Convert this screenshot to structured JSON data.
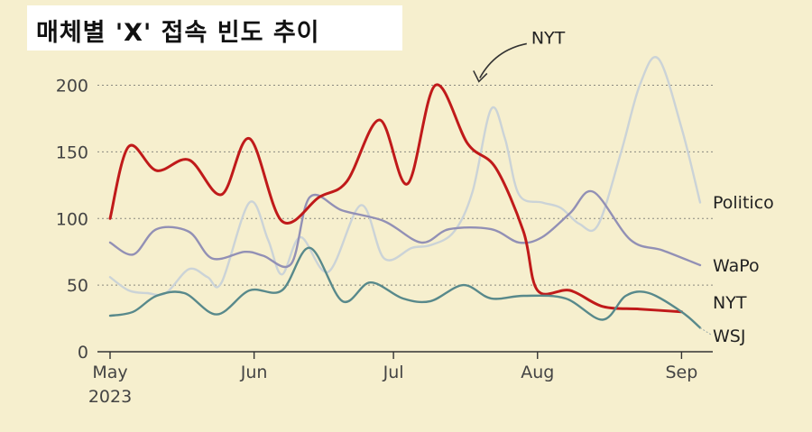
{
  "chart_data": {
    "type": "line",
    "title": "매체별 'X' 접속 빈도 추이",
    "xlabel": "",
    "ylabel": "",
    "ylim": [
      0,
      220
    ],
    "yticks": [
      0,
      50,
      100,
      150,
      200
    ],
    "x_start": "2023-05-01",
    "x_end": "2023-09-05",
    "xticks": [
      {
        "label": "May",
        "sublabel": "2023",
        "date": "2023-05-01"
      },
      {
        "label": "Jun",
        "sublabel": "",
        "date": "2023-06-01"
      },
      {
        "label": "Jul",
        "sublabel": "",
        "date": "2023-07-01"
      },
      {
        "label": "Aug",
        "sublabel": "",
        "date": "2023-08-01"
      },
      {
        "label": "Sep",
        "sublabel": "",
        "date": "2023-09-01"
      }
    ],
    "grid": true,
    "annotation": {
      "text": "NYT",
      "target_date": "2023-07-19",
      "target_value": 196
    },
    "series": [
      {
        "name": "Politico",
        "color": "#cbd3d7",
        "points": [
          [
            "2023-05-01",
            56
          ],
          [
            "2023-05-05",
            46
          ],
          [
            "2023-05-09",
            44
          ],
          [
            "2023-05-13",
            44
          ],
          [
            "2023-05-18",
            62
          ],
          [
            "2023-05-22",
            56
          ],
          [
            "2023-05-25",
            52
          ],
          [
            "2023-05-31",
            112
          ],
          [
            "2023-06-04",
            84
          ],
          [
            "2023-06-07",
            58
          ],
          [
            "2023-06-11",
            86
          ],
          [
            "2023-06-17",
            60
          ],
          [
            "2023-06-24",
            110
          ],
          [
            "2023-06-29",
            70
          ],
          [
            "2023-07-05",
            78
          ],
          [
            "2023-07-09",
            80
          ],
          [
            "2023-07-14",
            90
          ],
          [
            "2023-07-18",
            120
          ],
          [
            "2023-07-22",
            182
          ],
          [
            "2023-07-25",
            160
          ],
          [
            "2023-07-28",
            118
          ],
          [
            "2023-08-02",
            112
          ],
          [
            "2023-08-06",
            108
          ],
          [
            "2023-08-10",
            96
          ],
          [
            "2023-08-14",
            95
          ],
          [
            "2023-08-19",
            150
          ],
          [
            "2023-08-23",
            200
          ],
          [
            "2023-08-27",
            220
          ],
          [
            "2023-09-01",
            168
          ],
          [
            "2023-09-05",
            112
          ]
        ]
      },
      {
        "name": "WaPo",
        "color": "#9290b5",
        "points": [
          [
            "2023-05-01",
            82
          ],
          [
            "2023-05-06",
            73
          ],
          [
            "2023-05-11",
            92
          ],
          [
            "2023-05-18",
            90
          ],
          [
            "2023-05-23",
            70
          ],
          [
            "2023-05-30",
            75
          ],
          [
            "2023-06-03",
            72
          ],
          [
            "2023-06-09",
            66
          ],
          [
            "2023-06-13",
            116
          ],
          [
            "2023-06-20",
            106
          ],
          [
            "2023-06-29",
            98
          ],
          [
            "2023-07-07",
            82
          ],
          [
            "2023-07-13",
            92
          ],
          [
            "2023-07-22",
            92
          ],
          [
            "2023-07-28",
            82
          ],
          [
            "2023-08-02",
            86
          ],
          [
            "2023-08-08",
            104
          ],
          [
            "2023-08-13",
            120
          ],
          [
            "2023-08-21",
            84
          ],
          [
            "2023-08-28",
            76
          ],
          [
            "2023-09-05",
            65
          ]
        ]
      },
      {
        "name": "NYT",
        "color": "#c01a1a",
        "points": [
          [
            "2023-05-01",
            100
          ],
          [
            "2023-05-05",
            154
          ],
          [
            "2023-05-11",
            136
          ],
          [
            "2023-05-18",
            144
          ],
          [
            "2023-05-25",
            118
          ],
          [
            "2023-05-31",
            160
          ],
          [
            "2023-06-07",
            98
          ],
          [
            "2023-06-15",
            116
          ],
          [
            "2023-06-21",
            128
          ],
          [
            "2023-06-28",
            174
          ],
          [
            "2023-07-04",
            126
          ],
          [
            "2023-07-10",
            200
          ],
          [
            "2023-07-17",
            156
          ],
          [
            "2023-07-23",
            138
          ],
          [
            "2023-07-29",
            90
          ],
          [
            "2023-08-01",
            46
          ],
          [
            "2023-08-08",
            46
          ],
          [
            "2023-08-15",
            34
          ],
          [
            "2023-08-23",
            32
          ],
          [
            "2023-09-01",
            30
          ]
        ]
      },
      {
        "name": "WSJ",
        "color": "#58898b",
        "points": [
          [
            "2023-05-01",
            27
          ],
          [
            "2023-05-06",
            30
          ],
          [
            "2023-05-11",
            42
          ],
          [
            "2023-05-17",
            44
          ],
          [
            "2023-05-24",
            28
          ],
          [
            "2023-05-31",
            46
          ],
          [
            "2023-06-07",
            46
          ],
          [
            "2023-06-13",
            78
          ],
          [
            "2023-06-20",
            38
          ],
          [
            "2023-06-26",
            52
          ],
          [
            "2023-07-03",
            40
          ],
          [
            "2023-07-09",
            38
          ],
          [
            "2023-07-16",
            50
          ],
          [
            "2023-07-22",
            40
          ],
          [
            "2023-07-29",
            42
          ],
          [
            "2023-08-07",
            40
          ],
          [
            "2023-08-15",
            24
          ],
          [
            "2023-08-20",
            42
          ],
          [
            "2023-08-25",
            44
          ],
          [
            "2023-09-01",
            30
          ],
          [
            "2023-09-05",
            18
          ]
        ]
      }
    ]
  }
}
